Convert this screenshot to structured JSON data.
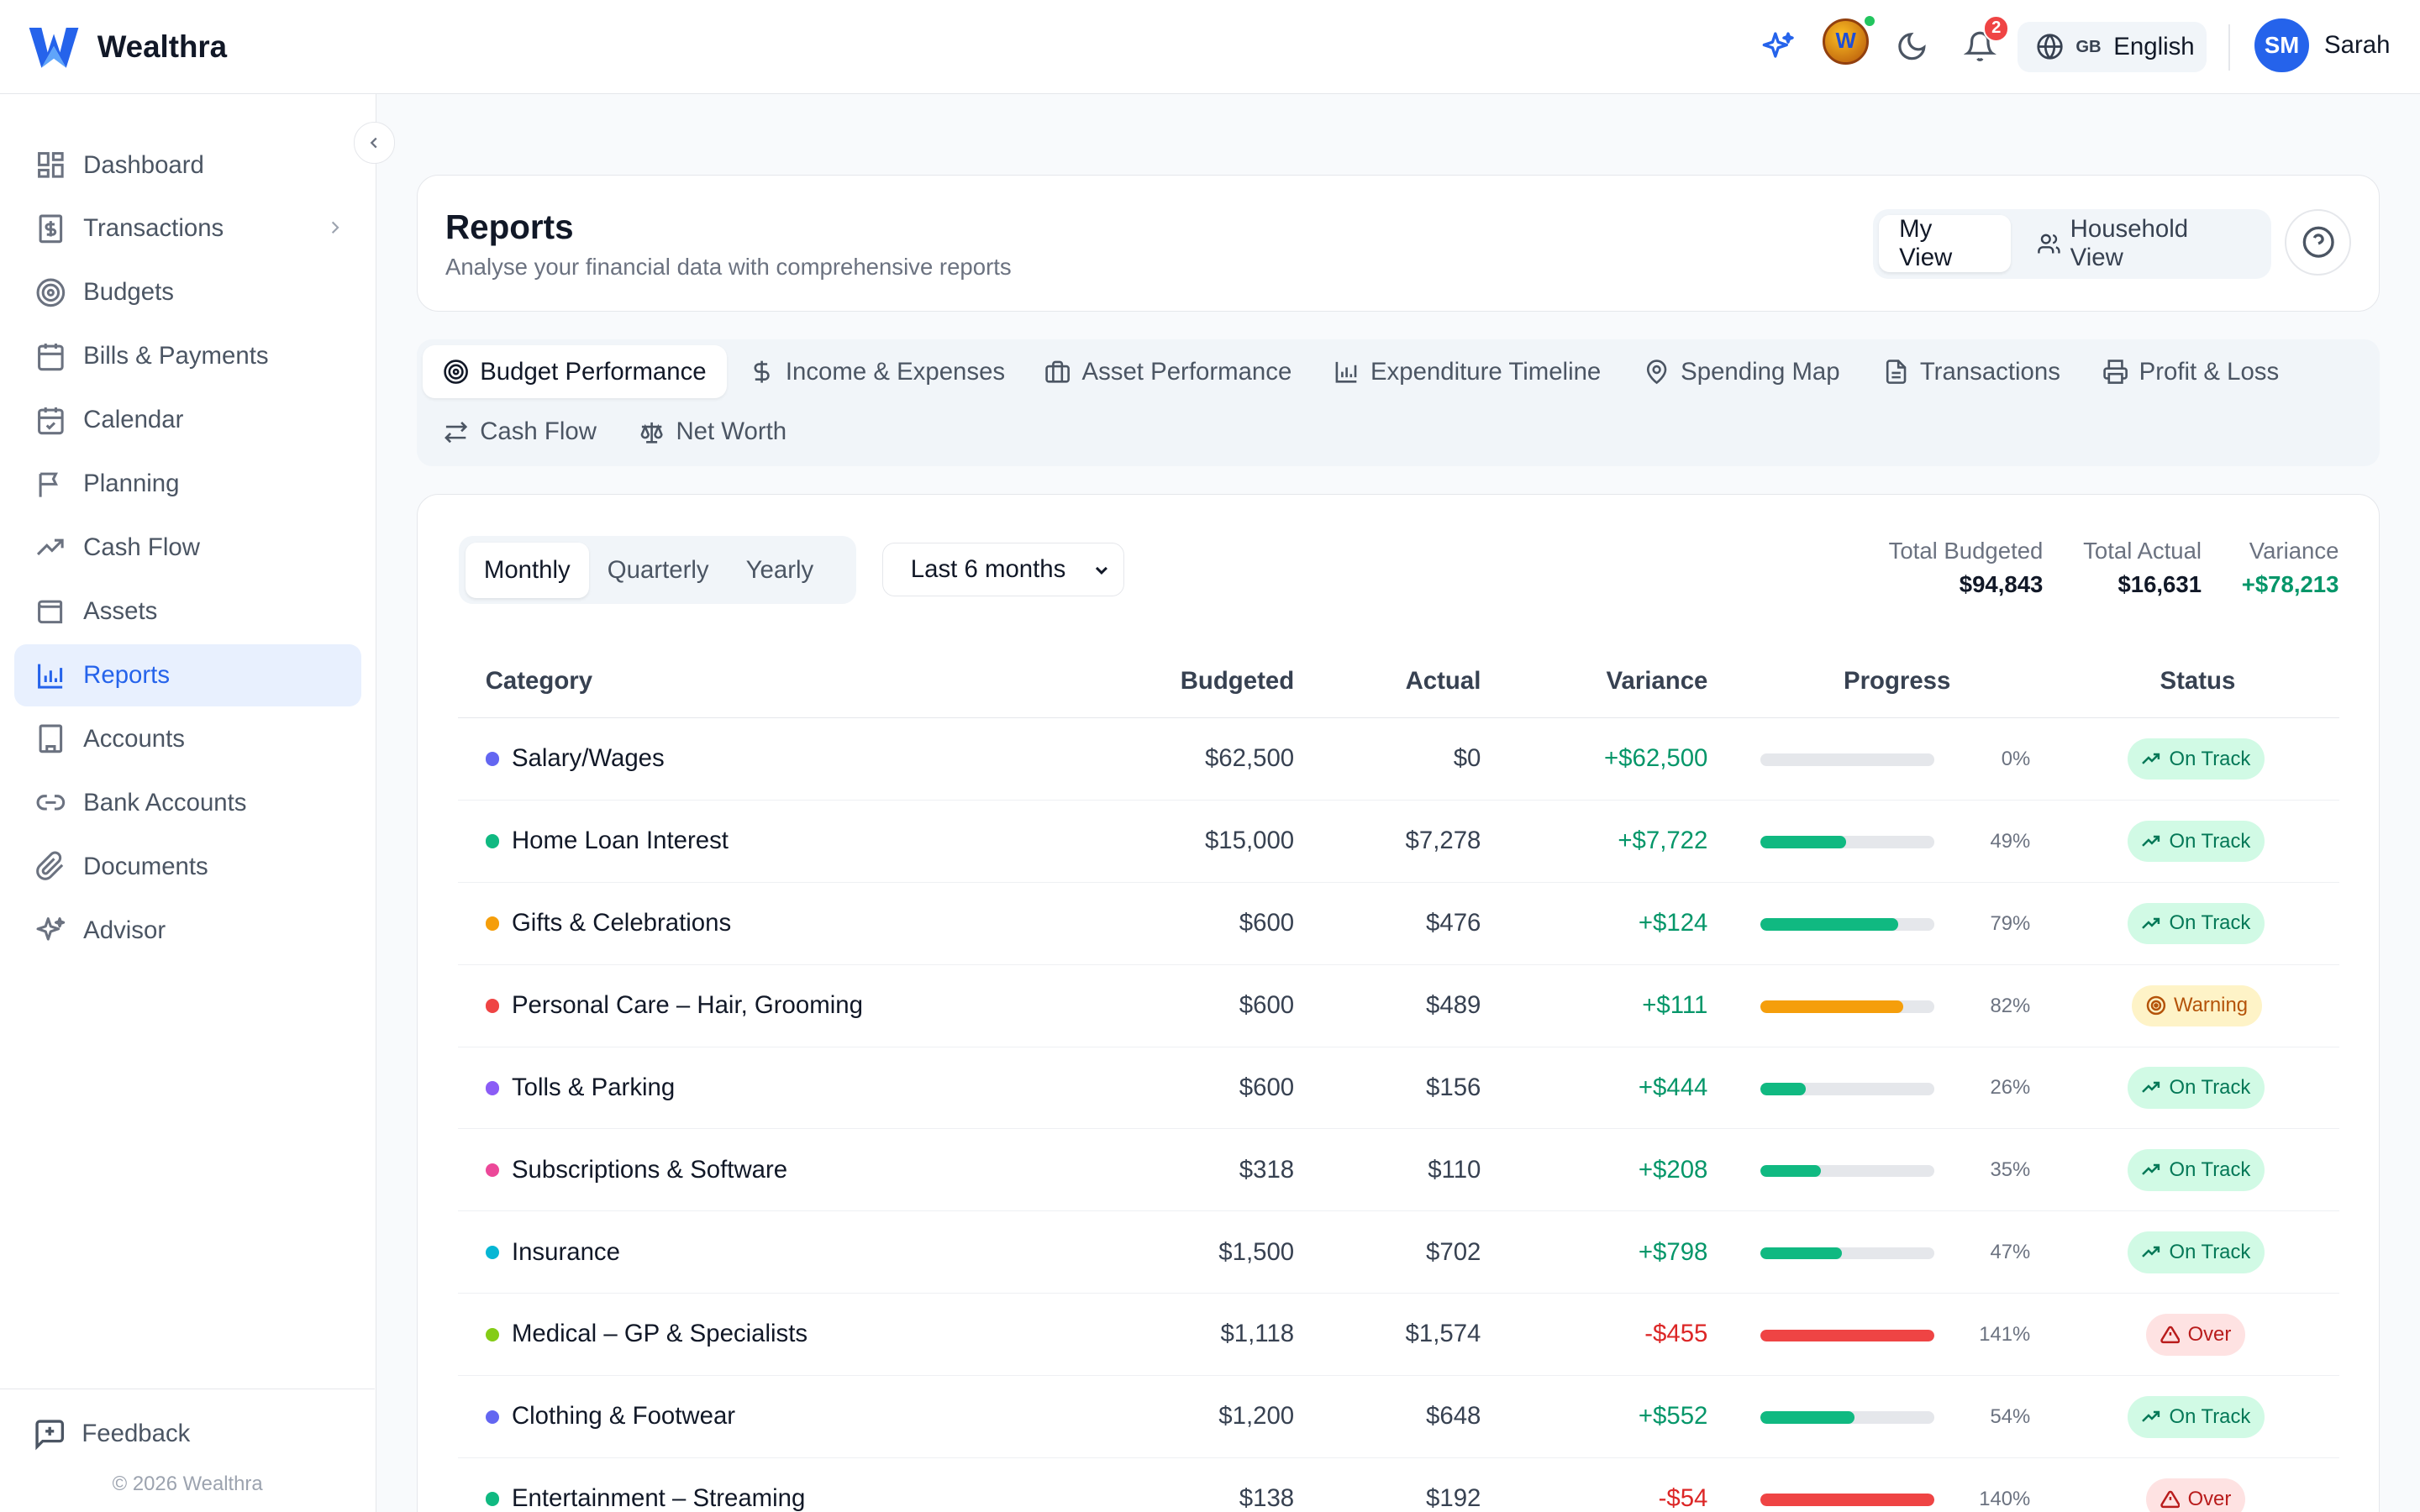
{
  "brand": {
    "name": "Wealthra",
    "logo_icon": "wealthra-logo-icon"
  },
  "header": {
    "notifications_count": "2",
    "language": {
      "flag": "GB",
      "label": "English"
    },
    "user": {
      "initials": "SM",
      "name": "Sarah"
    }
  },
  "sidebar": {
    "items": [
      {
        "label": "Dashboard",
        "icon": "dashboard-icon"
      },
      {
        "label": "Transactions",
        "icon": "dollar-document-icon",
        "has_submenu": true
      },
      {
        "label": "Budgets",
        "icon": "target-icon"
      },
      {
        "label": "Bills & Payments",
        "icon": "calendar-icon"
      },
      {
        "label": "Calendar",
        "icon": "calendar-check-icon"
      },
      {
        "label": "Planning",
        "icon": "flag-icon"
      },
      {
        "label": "Cash Flow",
        "icon": "trend-up-icon"
      },
      {
        "label": "Assets",
        "icon": "wallet-icon"
      },
      {
        "label": "Reports",
        "icon": "bar-chart-icon",
        "active": true
      },
      {
        "label": "Accounts",
        "icon": "building-icon"
      },
      {
        "label": "Bank Accounts",
        "icon": "link-icon"
      },
      {
        "label": "Documents",
        "icon": "paperclip-icon"
      },
      {
        "label": "Advisor",
        "icon": "sparkle-icon"
      }
    ],
    "feedback_label": "Feedback",
    "copyright": "© 2026 Wealthra"
  },
  "reports": {
    "title": "Reports",
    "subtitle": "Analyse your financial data with comprehensive reports",
    "views": {
      "my_view": "My View",
      "household_view": "Household View"
    }
  },
  "tabs": [
    {
      "label": "Budget Performance",
      "icon": "target-icon",
      "active": true
    },
    {
      "label": "Income & Expenses",
      "icon": "dollar-icon"
    },
    {
      "label": "Asset Performance",
      "icon": "briefcase-icon"
    },
    {
      "label": "Expenditure Timeline",
      "icon": "bar-chart-icon"
    },
    {
      "label": "Spending Map",
      "icon": "map-pin-icon"
    },
    {
      "label": "Transactions",
      "icon": "document-icon"
    },
    {
      "label": "Profit & Loss",
      "icon": "printer-icon"
    },
    {
      "label": "Cash Flow",
      "icon": "arrows-exchange-icon"
    },
    {
      "label": "Net Worth",
      "icon": "scale-icon"
    }
  ],
  "filters": {
    "periods": [
      "Monthly",
      "Quarterly",
      "Yearly"
    ],
    "active_period": "Monthly",
    "range": "Last 6 months"
  },
  "totals": {
    "budgeted_label": "Total Budgeted",
    "budgeted": "$94,843",
    "actual_label": "Total Actual",
    "actual": "$16,631",
    "variance_label": "Variance",
    "variance": "+$78,213"
  },
  "table": {
    "headers": {
      "category": "Category",
      "budgeted": "Budgeted",
      "actual": "Actual",
      "variance": "Variance",
      "progress": "Progress",
      "status": "Status"
    },
    "rows": [
      {
        "category": "Salary/Wages",
        "dot": "#6366f1",
        "budgeted": "$62,500",
        "actual": "$0",
        "variance": "+$62,500",
        "variance_sign": "pos",
        "progress": 0,
        "progress_label": "0%",
        "status": "On Track",
        "status_kind": "ok"
      },
      {
        "category": "Home Loan Interest",
        "dot": "#10b981",
        "budgeted": "$15,000",
        "actual": "$7,278",
        "variance": "+$7,722",
        "variance_sign": "pos",
        "progress": 49,
        "progress_label": "49%",
        "status": "On Track",
        "status_kind": "ok"
      },
      {
        "category": "Gifts & Celebrations",
        "dot": "#f59e0b",
        "budgeted": "$600",
        "actual": "$476",
        "variance": "+$124",
        "variance_sign": "pos",
        "progress": 79,
        "progress_label": "79%",
        "status": "On Track",
        "status_kind": "ok"
      },
      {
        "category": "Personal Care – Hair, Grooming",
        "dot": "#ef4444",
        "budgeted": "$600",
        "actual": "$489",
        "variance": "+$111",
        "variance_sign": "pos",
        "progress": 82,
        "progress_label": "82%",
        "status": "Warning",
        "status_kind": "warn"
      },
      {
        "category": "Tolls & Parking",
        "dot": "#8b5cf6",
        "budgeted": "$600",
        "actual": "$156",
        "variance": "+$444",
        "variance_sign": "pos",
        "progress": 26,
        "progress_label": "26%",
        "status": "On Track",
        "status_kind": "ok"
      },
      {
        "category": "Subscriptions & Software",
        "dot": "#ec4899",
        "budgeted": "$318",
        "actual": "$110",
        "variance": "+$208",
        "variance_sign": "pos",
        "progress": 35,
        "progress_label": "35%",
        "status": "On Track",
        "status_kind": "ok"
      },
      {
        "category": "Insurance",
        "dot": "#06b6d4",
        "budgeted": "$1,500",
        "actual": "$702",
        "variance": "+$798",
        "variance_sign": "pos",
        "progress": 47,
        "progress_label": "47%",
        "status": "On Track",
        "status_kind": "ok"
      },
      {
        "category": "Medical – GP & Specialists",
        "dot": "#84cc16",
        "budgeted": "$1,118",
        "actual": "$1,574",
        "variance": "-$455",
        "variance_sign": "neg",
        "progress": 141,
        "progress_label": "141%",
        "status": "Over",
        "status_kind": "over"
      },
      {
        "category": "Clothing & Footwear",
        "dot": "#6366f1",
        "budgeted": "$1,200",
        "actual": "$648",
        "variance": "+$552",
        "variance_sign": "pos",
        "progress": 54,
        "progress_label": "54%",
        "status": "On Track",
        "status_kind": "ok"
      },
      {
        "category": "Entertainment – Streaming",
        "dot": "#10b981",
        "budgeted": "$138",
        "actual": "$192",
        "variance": "-$54",
        "variance_sign": "neg",
        "progress": 140,
        "progress_label": "140%",
        "status": "Over",
        "status_kind": "over"
      }
    ]
  },
  "colors": {
    "accent": "#2563eb",
    "positive": "#059669",
    "negative": "#dc2626",
    "warning": "#f59e0b",
    "bar_ok": "#10b981",
    "bar_warn": "#f59e0b",
    "bar_over": "#ef4444"
  }
}
